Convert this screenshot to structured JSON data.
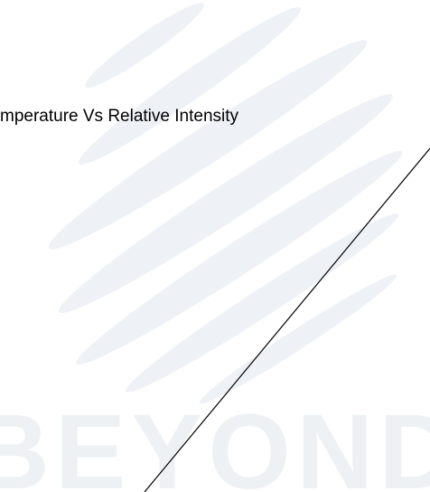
{
  "title": "mperature Vs Relative Intensity",
  "watermark": "BEYOND"
}
